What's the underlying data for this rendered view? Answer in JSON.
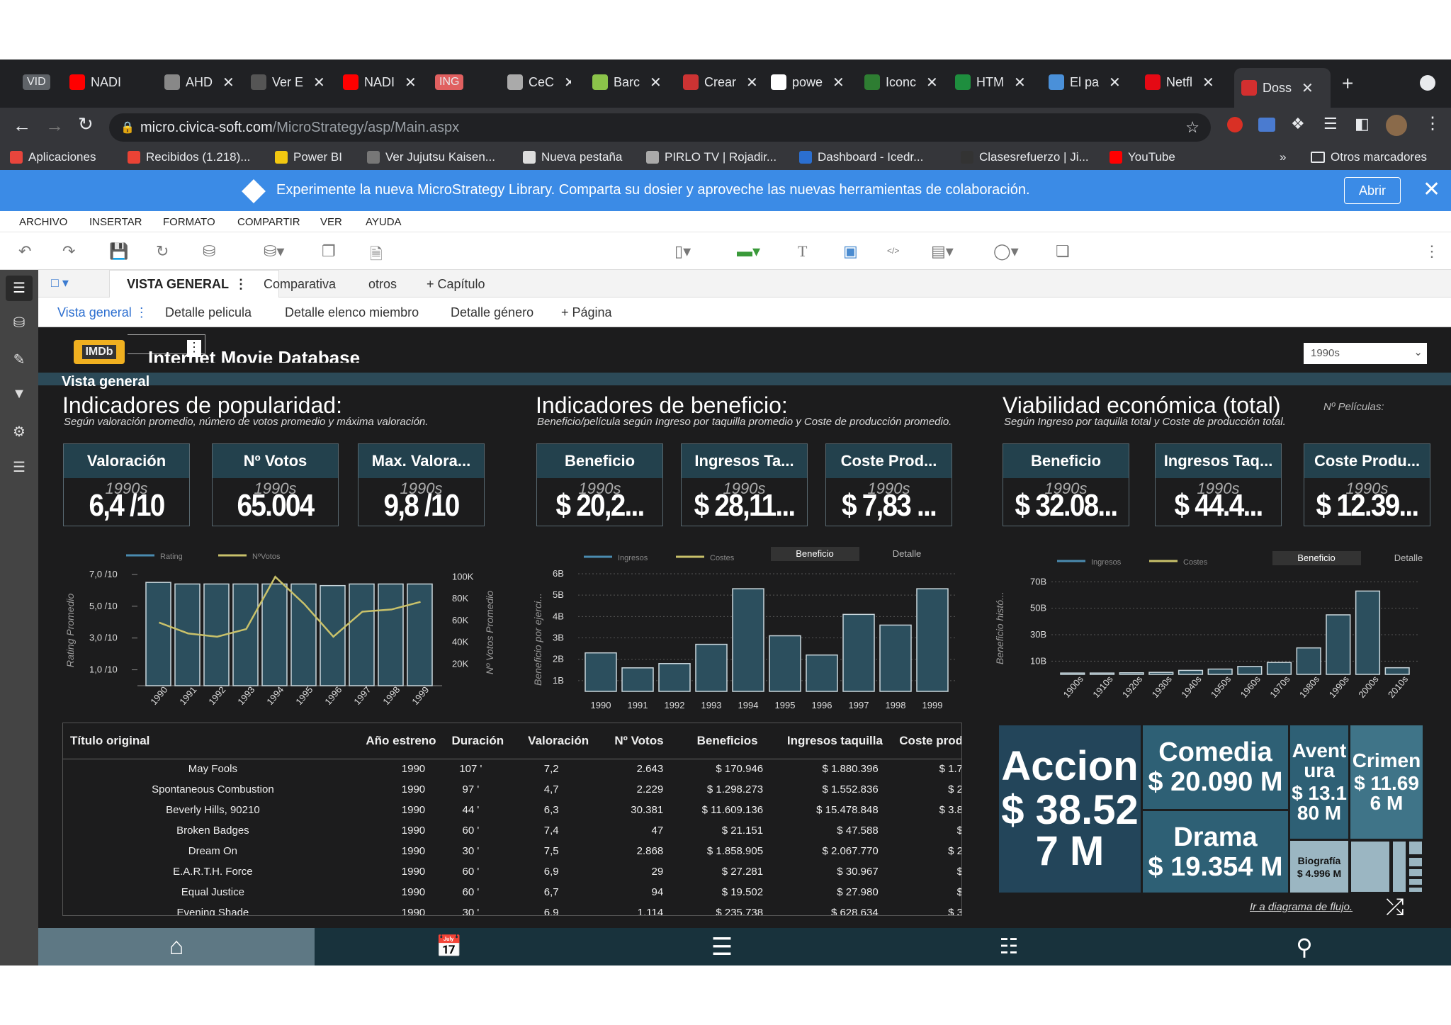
{
  "browser": {
    "tabs": [
      {
        "label": "VID",
        "kind": "badge",
        "color": "#5f6368"
      },
      {
        "label": "NADI",
        "fav": "#ff0000"
      },
      {
        "label": "AHD",
        "fav": "#888888"
      },
      {
        "label": "Ver E",
        "fav": "#555555"
      },
      {
        "label": "NADI",
        "fav": "#ff0000"
      },
      {
        "label": "ING",
        "kind": "badge",
        "color": "#e06060"
      },
      {
        "label": "CeC",
        "fav": "#aaaaaa"
      },
      {
        "label": "Barc",
        "fav": "#8bc34a"
      },
      {
        "label": "Crear",
        "fav": "#cc3333"
      },
      {
        "label": "powe",
        "fav": "#ffffff"
      },
      {
        "label": "Iconc",
        "fav": "#2e7d32"
      },
      {
        "label": "HTM",
        "fav": "#1e8e3e"
      },
      {
        "label": "El pa",
        "fav": "#4a90d9"
      },
      {
        "label": "Netfl",
        "fav": "#e50914"
      },
      {
        "label": "Doss",
        "fav": "#d32f2f",
        "active": true
      }
    ],
    "url_host": "micro.civica-soft.com",
    "url_path": "/MicroStrategy/asp/Main.aspx",
    "bookmarks": [
      "Aplicaciones",
      "Recibidos (1.218)...",
      "Power BI",
      "Ver Jujutsu Kaisen...",
      "Nueva pestaña",
      "PIRLO TV | Rojadir...",
      "Dashboard - Icedr...",
      "Clasesrefuerzo | Ji...",
      "YouTube"
    ],
    "bookmarks_more": "»",
    "other_bookmarks": "Otros marcadores"
  },
  "banner": {
    "text": "Experimente la nueva MicroStrategy Library. Comparta su dosier y aproveche las nuevas herramientas de colaboración.",
    "button": "Abrir"
  },
  "menu": [
    "ARCHIVO",
    "INSERTAR",
    "FORMATO",
    "COMPARTIR",
    "VER",
    "AYUDA"
  ],
  "chapters": {
    "active": "VISTA GENERAL",
    "items": [
      "Comparativa",
      "otros"
    ],
    "add": "+ Capítulo"
  },
  "pages": {
    "active": "Vista general",
    "items": [
      "Detalle pelicula",
      "Detalle elenco miembro",
      "Detalle género"
    ],
    "add": "+ Página"
  },
  "header": {
    "logo": "IMDb",
    "title": "Internet Movie Database",
    "selector": "1990s",
    "subtitle": "Vista general"
  },
  "popularidad": {
    "title": "Indicadores de popularidad:",
    "sub": "Según valoración promedio, número de votos promedio y máxima valoración.",
    "kpis": [
      {
        "label": "Valoración",
        "year": "1990s",
        "value": "6,4 /10"
      },
      {
        "label": "Nº Votos",
        "year": "1990s",
        "value": "65.004"
      },
      {
        "label": "Max. Valora...",
        "year": "1990s",
        "value": "9,8 /10"
      }
    ]
  },
  "beneficio": {
    "title": "Indicadores de beneficio:",
    "sub": "Beneficio/película según Ingreso por taquilla promedio y  Coste de producción promedio.",
    "kpis": [
      {
        "label": "Beneficio",
        "year": "1990s",
        "value": "$ 20,2..."
      },
      {
        "label": "Ingresos Ta...",
        "year": "1990s",
        "value": "$ 28,11..."
      },
      {
        "label": "Coste Prod...",
        "year": "1990s",
        "value": "$ 7,83 ..."
      }
    ]
  },
  "viabilidad": {
    "title": "Viabilidad económica (total)",
    "sub": "Según Ingreso por taquilla total y Coste de producción total.",
    "corner": "Nº Películas:",
    "kpis": [
      {
        "label": "Beneficio",
        "year": "1990s",
        "value": "$ 32.08..."
      },
      {
        "label": "Ingresos Taq...",
        "year": "1990s",
        "value": "$ 44.4..."
      },
      {
        "label": "Coste Produ...",
        "year": "1990s",
        "value": "$ 12.39..."
      }
    ]
  },
  "chart_data": [
    {
      "type": "bar",
      "title": "",
      "legend": [
        "Rating",
        "NºVotos"
      ],
      "categories": [
        "1990",
        "1991",
        "1992",
        "1993",
        "1994",
        "1995",
        "1996",
        "1997",
        "1998",
        "1999"
      ],
      "series": [
        {
          "name": "Rating",
          "values": [
            6.5,
            6.4,
            6.4,
            6.4,
            6.4,
            6.4,
            6.3,
            6.4,
            6.4,
            6.4
          ]
        },
        {
          "name": "NºVotos",
          "values": [
            58000,
            48000,
            45000,
            52000,
            100000,
            75000,
            45000,
            68000,
            70000,
            77000
          ]
        }
      ],
      "ylabel": "Rating Promedio",
      "ylabel2": "Nº Votos Promedio",
      "yticks": [
        "7,0 /10",
        "5,0 /10",
        "3,0 /10",
        "1,0 /10"
      ],
      "y2ticks": [
        "100K",
        "80K",
        "60K",
        "40K",
        "20K"
      ],
      "ylim": [
        0,
        7.4
      ],
      "y2lim": [
        0,
        108000
      ]
    },
    {
      "type": "bar",
      "title": "",
      "legend": [
        "Ingresos",
        "Costes"
      ],
      "toggle": [
        "Beneficio",
        "Detalle"
      ],
      "categories": [
        "1990",
        "1991",
        "1992",
        "1993",
        "1994",
        "1995",
        "1996",
        "1997",
        "1998",
        "1999"
      ],
      "series": [
        {
          "name": "Beneficio",
          "values": [
            2.3,
            1.6,
            1.8,
            2.7,
            5.3,
            3.1,
            2.2,
            4.1,
            3.6,
            5.3
          ]
        }
      ],
      "ylabel": "Beneficio por ejerci...",
      "yticks": [
        "6B",
        "5B",
        "4B",
        "3B",
        "2B",
        "1B"
      ],
      "ylim": [
        0.5,
        6
      ]
    },
    {
      "type": "bar",
      "title": "",
      "legend": [
        "Ingresos",
        "Costes"
      ],
      "toggle": [
        "Beneficio",
        "Detalle"
      ],
      "categories": [
        "1900s",
        "1910s",
        "1920s",
        "1930s",
        "1940s",
        "1950s",
        "1960s",
        "1970s",
        "1980s",
        "1990s",
        "2000s",
        "2010s"
      ],
      "series": [
        {
          "name": "Beneficio",
          "values": [
            1,
            1,
            1.2,
            1.5,
            3,
            4,
            6,
            9,
            20,
            45,
            63,
            5
          ]
        }
      ],
      "ylabel": "Beneficio histó...",
      "yticks": [
        "70B",
        "50B",
        "30B",
        "10B"
      ],
      "ylim": [
        0,
        75
      ]
    }
  ],
  "table": {
    "headers": [
      "Título original",
      "Año estreno",
      "Duración",
      "Valoración",
      "Nº Votos",
      "Beneficios",
      "Ingresos taquilla",
      "Coste produ"
    ],
    "rows": [
      [
        "May Fools",
        "1990",
        "107 '",
        "7,2",
        "2.643",
        "$ 170.946",
        "$ 1.880.396",
        "$ 1.7"
      ],
      [
        "Spontaneous Combustion",
        "1990",
        "97 '",
        "4,7",
        "2.229",
        "$ 1.298.273",
        "$ 1.552.836",
        "$ 2"
      ],
      [
        "Beverly Hills, 90210",
        "1990",
        "44 '",
        "6,3",
        "30.381",
        "$ 11.609.136",
        "$ 15.478.848",
        "$ 3.8"
      ],
      [
        "Broken Badges",
        "1990",
        "60 '",
        "7,4",
        "47",
        "$ 21.151",
        "$ 47.588",
        "$"
      ],
      [
        "Dream On",
        "1990",
        "30 '",
        "7,5",
        "2.868",
        "$ 1.858.905",
        "$ 2.067.770",
        "$ 2"
      ],
      [
        "E.A.R.T.H. Force",
        "1990",
        "60 '",
        "6,9",
        "29",
        "$ 27.281",
        "$ 30.967",
        "$"
      ],
      [
        "Equal Justice",
        "1990",
        "60 '",
        "6,7",
        "94",
        "$ 19.502",
        "$ 27.980",
        "$"
      ],
      [
        "Evening Shade",
        "1990",
        "30 '",
        "6,9",
        "1.114",
        "$ 235.738",
        "$ 628.634",
        "$ 3"
      ]
    ]
  },
  "treemap": [
    {
      "genre": "Accion",
      "value": "$ 38.527 M"
    },
    {
      "genre": "Comedia",
      "value": "$ 20.090 M"
    },
    {
      "genre": "Aventura",
      "value": "$ 13.180 M"
    },
    {
      "genre": "Crimen",
      "value": "$ 11.696 M"
    },
    {
      "genre": "Drama",
      "value": "$ 19.354 M"
    },
    {
      "genre": "Biografía",
      "value": "$ 4.996 M"
    }
  ],
  "flow_link": "Ir a diagrama de flujo.",
  "colors": {
    "bar": "#2c4f5e",
    "bar_border": "#c9d6dc",
    "line": "#c9c16a",
    "tree_dark": "#23455a",
    "tree_mid": "#2e6075",
    "tree_light": "#9bb6c2"
  }
}
